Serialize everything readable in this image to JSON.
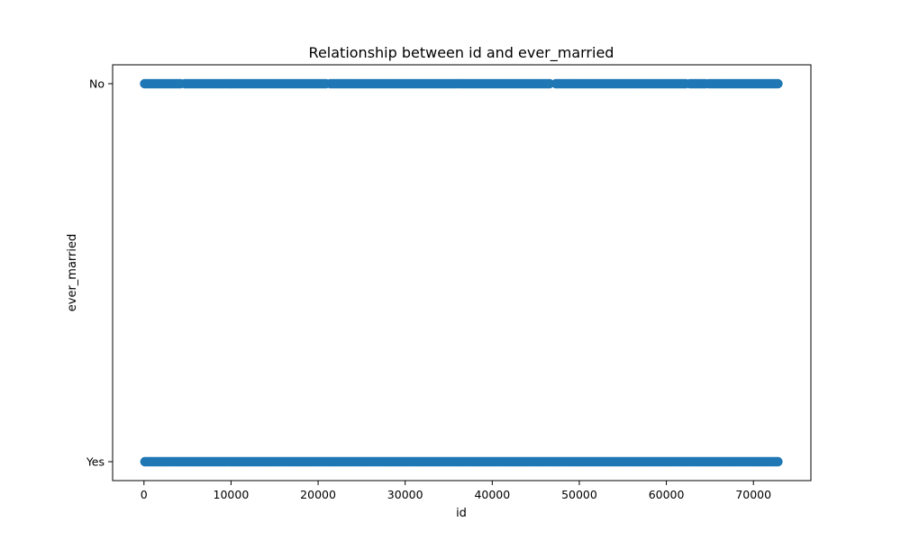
{
  "chart_data": {
    "type": "scatter",
    "title": "Relationship between id and ever_married",
    "xlabel": "id",
    "ylabel": "ever_married",
    "xlim": [
      -3600,
      76600
    ],
    "x_ticks": [
      0,
      10000,
      20000,
      30000,
      40000,
      50000,
      60000,
      70000
    ],
    "y_categories": [
      "Yes",
      "No"
    ],
    "grid": false,
    "marker_color": "#1f77b4",
    "series": [
      {
        "category": "No",
        "x_ranges": [
          [
            67,
            4300
          ],
          [
            4700,
            20900
          ],
          [
            21400,
            46700
          ],
          [
            47300,
            62300
          ],
          [
            62700,
            64500
          ],
          [
            64900,
            72900
          ]
        ]
      },
      {
        "category": "Yes",
        "x_ranges": [
          [
            100,
            72940
          ]
        ]
      }
    ]
  }
}
